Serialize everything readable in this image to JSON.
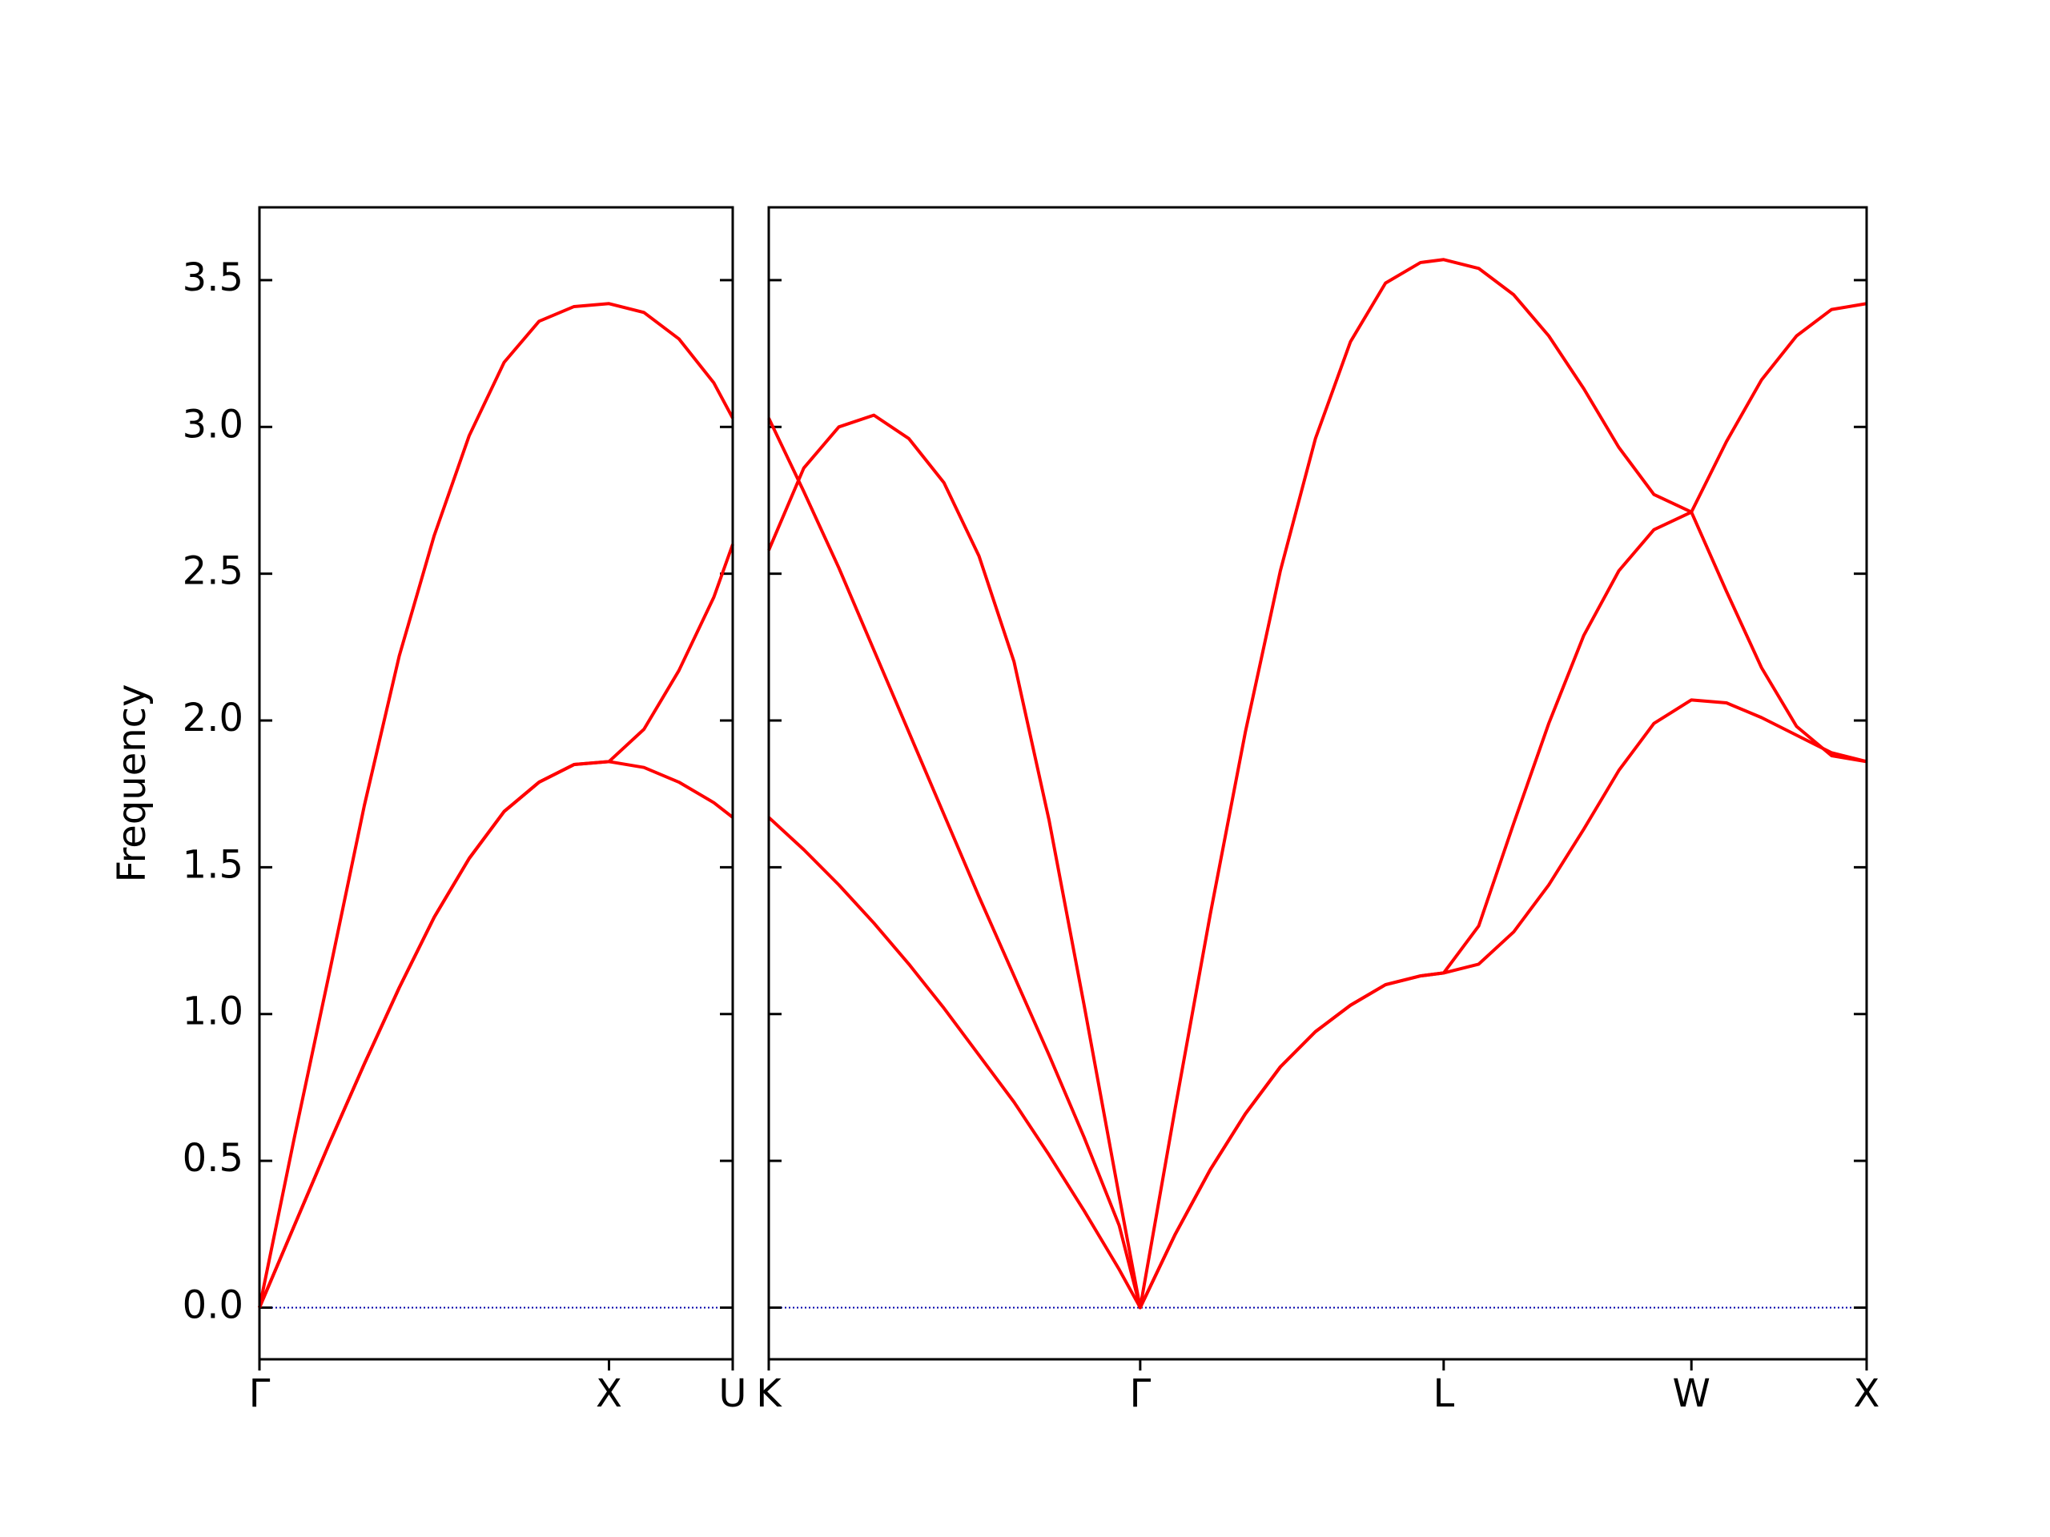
{
  "chart_data": [
    {
      "type": "line",
      "ylabel": "Frequency",
      "x": [
        0,
        0.1,
        0.2,
        0.3,
        0.4,
        0.5,
        0.6,
        0.7,
        0.8,
        0.9,
        1.0,
        1.1,
        1.2,
        1.3,
        1.354
      ],
      "series": [
        {
          "color": "#ff0000",
          "values": [
            0,
            0.28,
            0.56,
            0.83,
            1.09,
            1.33,
            1.53,
            1.69,
            1.79,
            1.85,
            1.86,
            1.84,
            1.79,
            1.72,
            1.67
          ]
        },
        {
          "color": "#ff0000",
          "values": [
            0,
            0.28,
            0.56,
            0.83,
            1.09,
            1.33,
            1.53,
            1.69,
            1.79,
            1.85,
            1.86,
            1.97,
            2.17,
            2.42,
            2.6
          ]
        },
        {
          "color": "#ff0000",
          "values": [
            0,
            0.58,
            1.14,
            1.71,
            2.22,
            2.63,
            2.97,
            3.22,
            3.36,
            3.41,
            3.42,
            3.39,
            3.3,
            3.15,
            3.03
          ]
        }
      ],
      "xlim": [
        0,
        1.354
      ],
      "xticks": [
        {
          "value": 0,
          "label": "Γ"
        },
        {
          "value": 1.0,
          "label": "X"
        },
        {
          "value": 1.354,
          "label": "U"
        }
      ],
      "ylim": [
        -0.176,
        3.748
      ],
      "yticks": [
        {
          "value": 0,
          "label": "0.0"
        },
        0.5,
        {
          "value": 1,
          "label": "1.0"
        },
        1.5,
        {
          "value": 2,
          "label": "2.0"
        },
        2.5,
        {
          "value": 3,
          "label": "3.0"
        },
        3.5
      ],
      "hline": 0,
      "hline_color": "#0000aa"
    },
    {
      "type": "line",
      "x": [
        1.354,
        1.454,
        1.554,
        1.654,
        1.754,
        1.854,
        1.954,
        2.054,
        2.154,
        2.254,
        2.354,
        2.414,
        2.514,
        2.614,
        2.714,
        2.814,
        2.914,
        3.014,
        3.114,
        3.214,
        3.28,
        3.38,
        3.48,
        3.58,
        3.68,
        3.78,
        3.88,
        3.987,
        4.087,
        4.187,
        4.287,
        4.387,
        4.487
      ],
      "series": [
        {
          "color": "#ff0000",
          "values": [
            1.67,
            1.56,
            1.44,
            1.31,
            1.17,
            1.02,
            0.86,
            0.7,
            0.52,
            0.33,
            0.13,
            0,
            0.25,
            0.47,
            0.66,
            0.82,
            0.94,
            1.03,
            1.1,
            1.13,
            1.14,
            1.17,
            1.28,
            1.44,
            1.63,
            1.83,
            1.99,
            2.07,
            2.06,
            2.01,
            1.95,
            1.89,
            1.86
          ]
        },
        {
          "color": "#ff0000",
          "values": [
            3.03,
            2.78,
            2.52,
            2.24,
            1.96,
            1.68,
            1.4,
            1.13,
            0.86,
            0.58,
            0.28,
            0,
            0.25,
            0.47,
            0.66,
            0.82,
            0.94,
            1.03,
            1.1,
            1.13,
            1.14,
            1.3,
            1.65,
            1.99,
            2.29,
            2.51,
            2.65,
            2.71,
            2.44,
            2.18,
            1.98,
            1.88,
            1.86
          ]
        },
        {
          "color": "#ff0000",
          "values": [
            2.58,
            2.86,
            3.0,
            3.04,
            2.96,
            2.81,
            2.56,
            2.2,
            1.66,
            1.03,
            0.38,
            0,
            0.68,
            1.34,
            1.96,
            2.51,
            2.96,
            3.29,
            3.49,
            3.56,
            3.57,
            3.54,
            3.45,
            3.31,
            3.13,
            2.93,
            2.77,
            2.71,
            2.95,
            3.16,
            3.31,
            3.4,
            3.42
          ]
        }
      ],
      "xlim": [
        1.354,
        4.487
      ],
      "xticks": [
        {
          "value": 1.354,
          "label": "K"
        },
        {
          "value": 2.414,
          "label": "Γ"
        },
        {
          "value": 3.28,
          "label": "L"
        },
        {
          "value": 3.987,
          "label": "W"
        },
        {
          "value": 4.487,
          "label": "X"
        }
      ],
      "ylim": [
        -0.176,
        3.748
      ],
      "yticks": [
        {
          "value": 0,
          "label": "0.0"
        },
        0.5,
        {
          "value": 1,
          "label": "1.0"
        },
        1.5,
        {
          "value": 2,
          "label": "2.0"
        },
        2.5,
        {
          "value": 3,
          "label": "3.0"
        },
        3.5
      ],
      "hline": 0,
      "hline_color": "#0000aa"
    }
  ]
}
